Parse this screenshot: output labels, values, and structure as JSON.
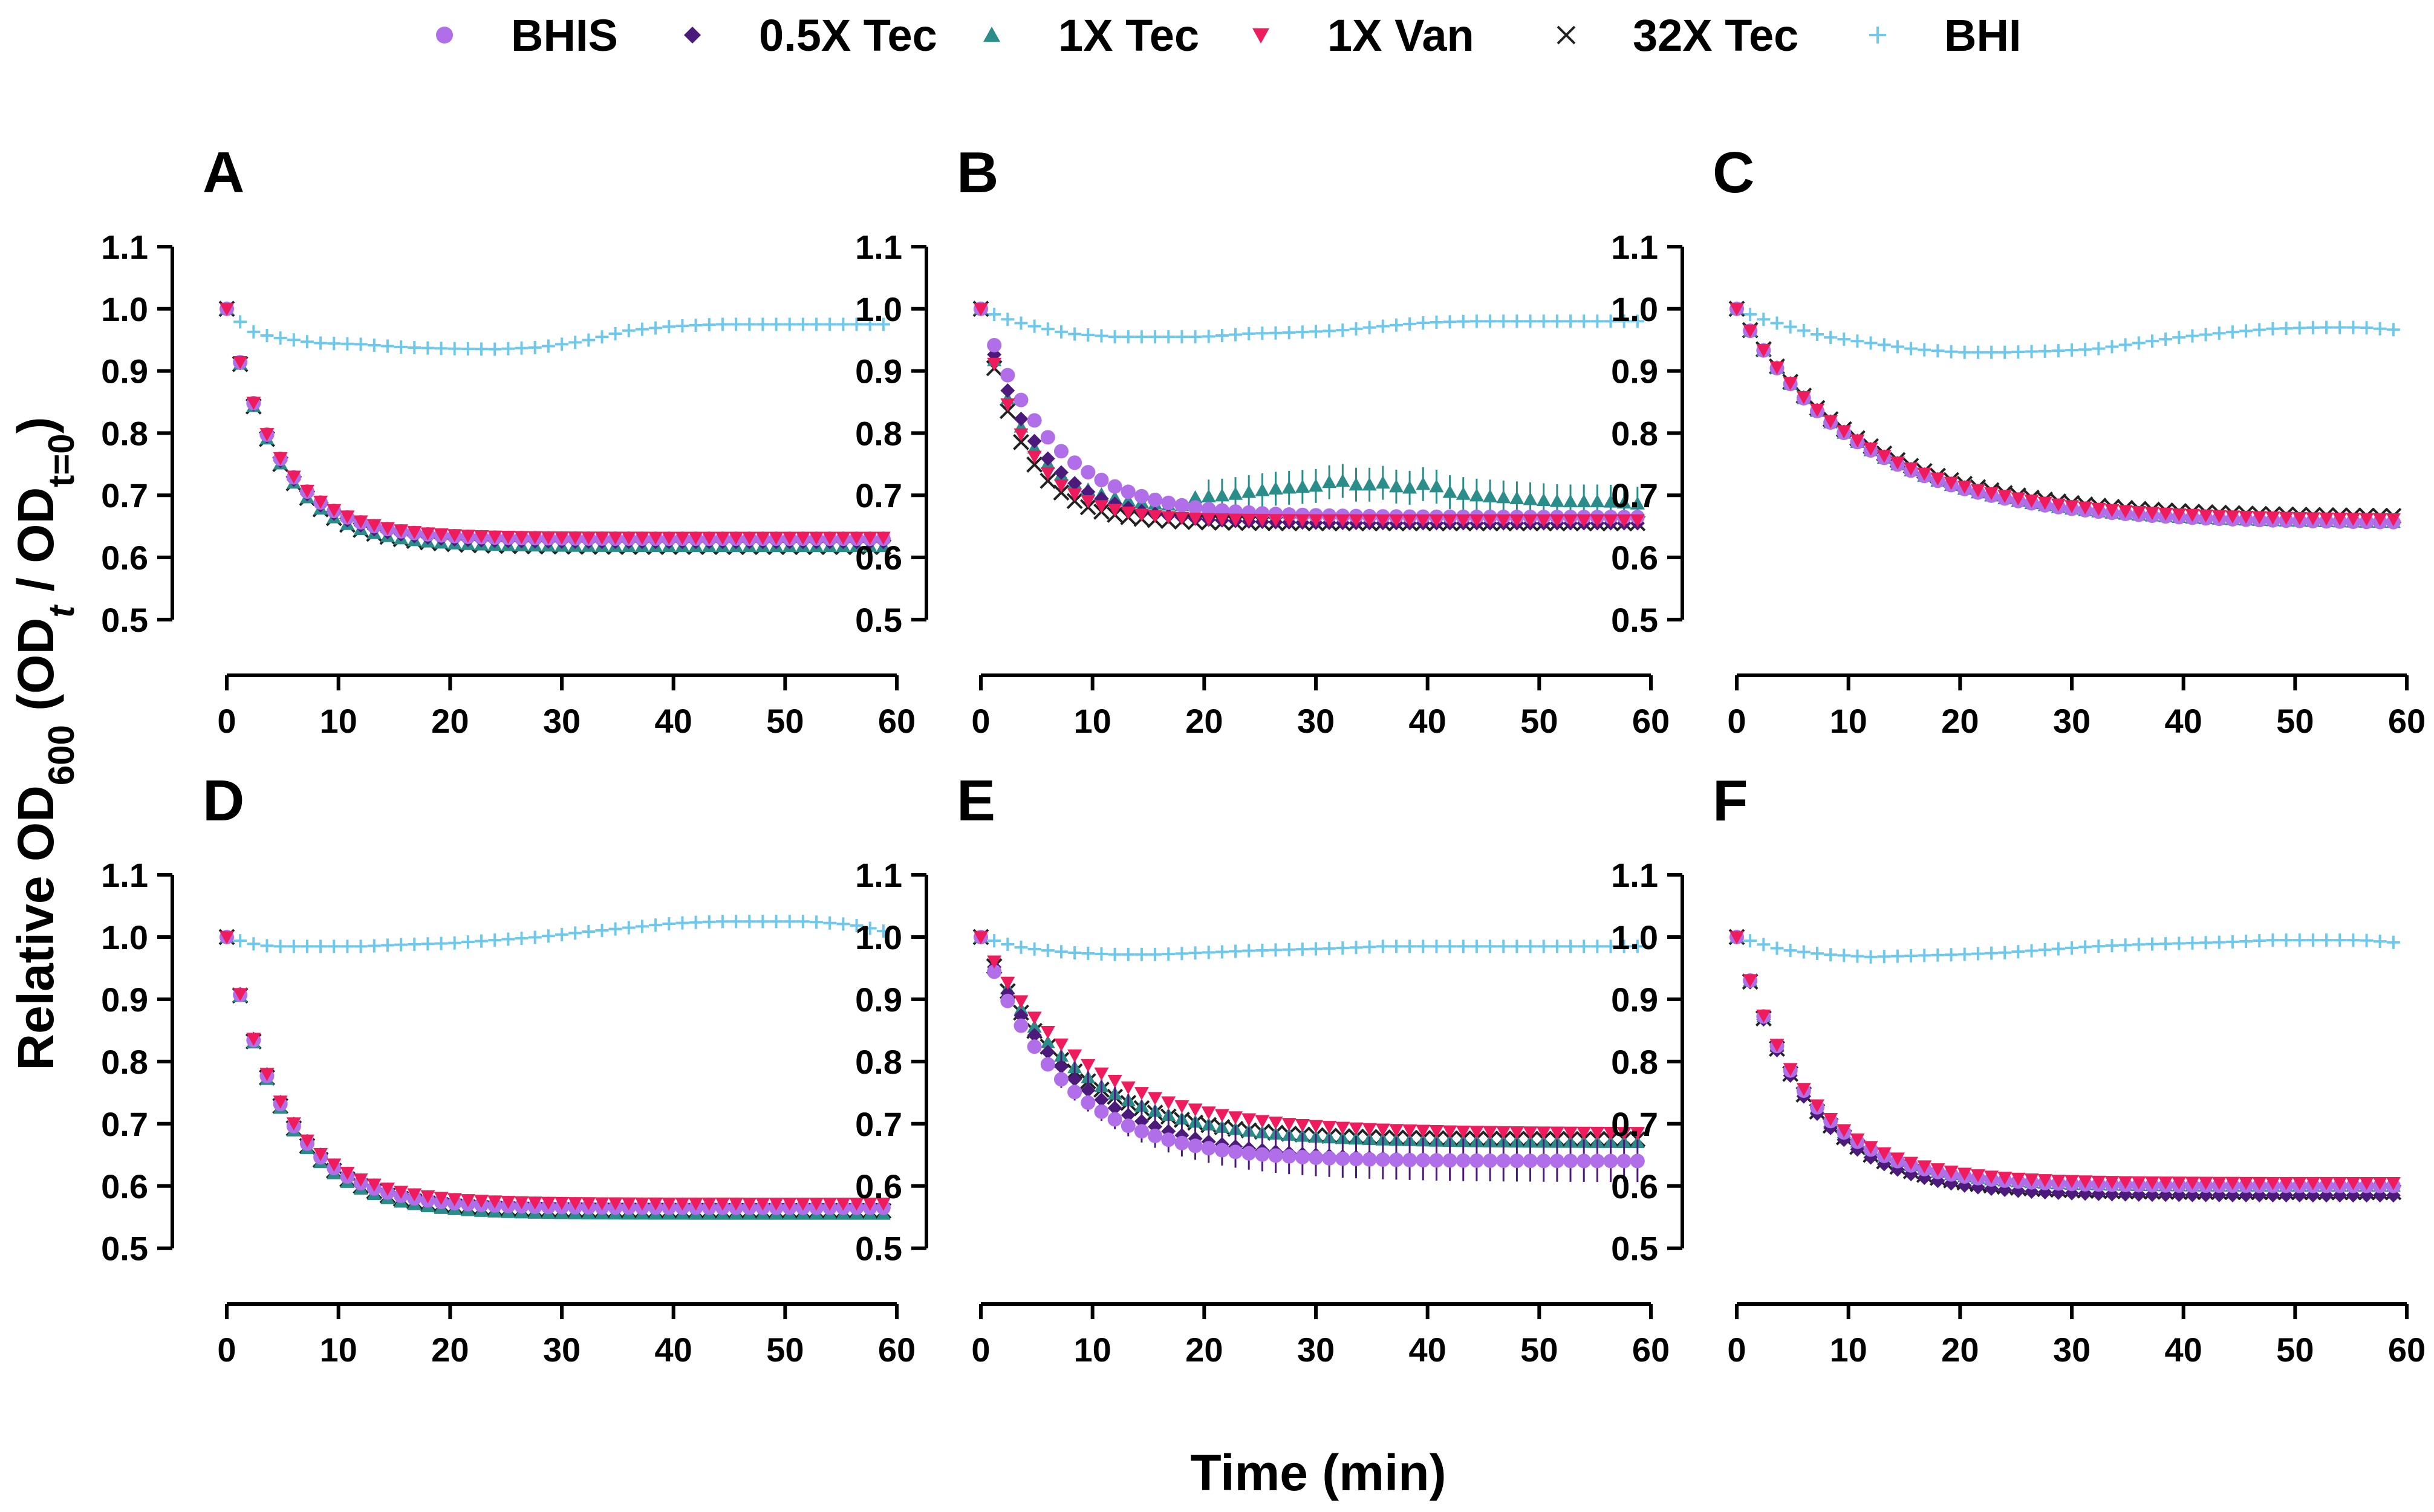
{
  "chart_data": {
    "type": "scatter",
    "x_axis_title": "Time (min)",
    "y_axis_title": {
      "prefix": "Relative OD",
      "sub600": "600",
      "open": " (OD",
      "sub_t": "t",
      "slash": " / OD",
      "sub_t0": "t=0",
      "close": ")"
    },
    "x_ticks": [
      "0",
      "10",
      "20",
      "30",
      "40",
      "50",
      "60"
    ],
    "y_ticks": [
      "0.5",
      "0.6",
      "0.7",
      "0.8",
      "0.9",
      "1.0",
      "1.1"
    ],
    "xlim": [
      0,
      60
    ],
    "ylim": [
      0.5,
      1.1
    ],
    "legend": [
      {
        "name": "BHIS",
        "color": "#b06ee8",
        "marker": "circle"
      },
      {
        "name": "0.5X Tec",
        "color": "#4b1a7a",
        "marker": "diamond"
      },
      {
        "name": "1X Tec",
        "color": "#2a8d8a",
        "marker": "triangle-up"
      },
      {
        "name": "1X Van",
        "color": "#ee1b5d",
        "marker": "triangle-down"
      },
      {
        "name": "32X Tec",
        "color": "#222222",
        "marker": "x"
      },
      {
        "name": "BHI",
        "color": "#6ec8ec",
        "marker": "plus"
      }
    ],
    "panels": [
      {
        "label": "A",
        "bhi": {
          "x": [
            0,
            2,
            4,
            8,
            12,
            16,
            20,
            24,
            28,
            32,
            36,
            40,
            44,
            48,
            52,
            56,
            60
          ],
          "y": [
            1.0,
            0.965,
            0.955,
            0.945,
            0.943,
            0.938,
            0.936,
            0.935,
            0.938,
            0.948,
            0.965,
            0.972,
            0.975,
            0.975,
            0.975,
            0.975,
            0.975
          ]
        },
        "series": {
          "BHIS": {
            "plateau": 0.63,
            "k": 0.22,
            "start_y": 1.0
          },
          "0.5X Tec": {
            "plateau": 0.625,
            "k": 0.22,
            "start_y": 1.0
          },
          "1X Tec": {
            "plateau": 0.618,
            "k": 0.22,
            "start_y": 1.0
          },
          "1X Van": {
            "plateau": 0.632,
            "k": 0.22,
            "start_y": 1.0
          },
          "32X Tec": {
            "plateau": 0.617,
            "k": 0.22,
            "start_y": 1.0
          }
        }
      },
      {
        "label": "B",
        "bhi": {
          "x": [
            0,
            2,
            4,
            8,
            12,
            16,
            20,
            24,
            28,
            32,
            36,
            40,
            44,
            48,
            52,
            56,
            60
          ],
          "y": [
            1.0,
            0.985,
            0.975,
            0.96,
            0.955,
            0.955,
            0.955,
            0.96,
            0.962,
            0.965,
            0.972,
            0.978,
            0.98,
            0.98,
            0.98,
            0.98,
            0.98
          ]
        },
        "series": {
          "BHIS": {
            "plateau": 0.665,
            "k": 0.16,
            "start_y": 1.0
          },
          "0.5X Tec": {
            "plateau": 0.655,
            "k": 0.2,
            "start_y": 1.0
          },
          "1X Tec": {
            "plateau": 0.68,
            "k": 0.25,
            "start_y": 1.0
          },
          "1X Van": {
            "plateau": 0.66,
            "k": 0.25,
            "start_y": 1.0
          },
          "32X Tec": {
            "plateau": 0.655,
            "k": 0.27,
            "start_y": 1.0
          }
        },
        "tec_bump": {
          "x": [
            18,
            22,
            26,
            30,
            32,
            34,
            36,
            38,
            40,
            42,
            44,
            48,
            52,
            56,
            60
          ],
          "y": [
            0.695,
            0.7,
            0.71,
            0.715,
            0.725,
            0.715,
            0.72,
            0.71,
            0.72,
            0.705,
            0.7,
            0.695,
            0.69,
            0.69,
            0.685
          ]
        }
      },
      {
        "label": "C",
        "bhi": {
          "x": [
            0,
            2,
            4,
            8,
            12,
            16,
            20,
            24,
            28,
            32,
            36,
            40,
            44,
            48,
            52,
            56,
            60
          ],
          "y": [
            1.0,
            0.985,
            0.975,
            0.955,
            0.945,
            0.935,
            0.93,
            0.93,
            0.932,
            0.935,
            0.945,
            0.955,
            0.962,
            0.968,
            0.97,
            0.97,
            0.965
          ]
        },
        "series": {
          "BHIS": {
            "plateau": 0.655,
            "k": 0.09,
            "start_y": 1.0
          },
          "0.5X Tec": {
            "plateau": 0.658,
            "k": 0.09,
            "start_y": 1.0
          },
          "1X Tec": {
            "plateau": 0.655,
            "k": 0.09,
            "start_y": 1.0
          },
          "1X Van": {
            "plateau": 0.66,
            "k": 0.09,
            "start_y": 1.0
          },
          "32X Tec": {
            "plateau": 0.665,
            "k": 0.09,
            "start_y": 1.0
          }
        }
      },
      {
        "label": "D",
        "bhi": {
          "x": [
            0,
            2,
            4,
            8,
            12,
            16,
            20,
            24,
            28,
            32,
            36,
            40,
            44,
            48,
            52,
            56,
            60
          ],
          "y": [
            1.0,
            0.99,
            0.985,
            0.985,
            0.985,
            0.988,
            0.99,
            0.995,
            1.0,
            1.008,
            1.015,
            1.022,
            1.025,
            1.025,
            1.025,
            1.02,
            1.005
          ]
        },
        "series": {
          "BHIS": {
            "plateau": 0.565,
            "k": 0.2,
            "start_y": 1.0
          },
          "0.5X Tec": {
            "plateau": 0.57,
            "k": 0.2,
            "start_y": 1.0
          },
          "1X Tec": {
            "plateau": 0.555,
            "k": 0.2,
            "start_y": 1.0
          },
          "1X Van": {
            "plateau": 0.572,
            "k": 0.2,
            "start_y": 1.0
          },
          "32X Tec": {
            "plateau": 0.56,
            "k": 0.2,
            "start_y": 1.0
          }
        }
      },
      {
        "label": "E",
        "bhi": {
          "x": [
            0,
            2,
            4,
            8,
            12,
            16,
            20,
            24,
            28,
            32,
            36,
            40,
            44,
            48,
            52,
            56,
            60
          ],
          "y": [
            1.0,
            0.99,
            0.982,
            0.975,
            0.972,
            0.972,
            0.975,
            0.978,
            0.98,
            0.982,
            0.985,
            0.985,
            0.985,
            0.985,
            0.985,
            0.985,
            0.985
          ]
        },
        "series": {
          "BHIS": {
            "plateau": 0.64,
            "k": 0.14,
            "start_y": 1.0
          },
          "0.5X Tec": {
            "plateau": 0.64,
            "k": 0.12,
            "start_y": 1.0
          },
          "1X Tec": {
            "plateau": 0.67,
            "k": 0.12,
            "start_y": 1.0
          },
          "1X Van": {
            "plateau": 0.685,
            "k": 0.11,
            "start_y": 1.0
          },
          "32X Tec": {
            "plateau": 0.675,
            "k": 0.13,
            "start_y": 1.0
          }
        }
      },
      {
        "label": "F",
        "bhi": {
          "x": [
            0,
            2,
            4,
            8,
            12,
            16,
            20,
            24,
            28,
            32,
            36,
            40,
            44,
            48,
            52,
            56,
            60
          ],
          "y": [
            1.0,
            0.99,
            0.98,
            0.972,
            0.968,
            0.97,
            0.972,
            0.975,
            0.98,
            0.985,
            0.988,
            0.99,
            0.992,
            0.995,
            0.995,
            0.995,
            0.99
          ]
        },
        "series": {
          "BHIS": {
            "plateau": 0.6,
            "k": 0.16,
            "start_y": 1.0
          },
          "0.5X Tec": {
            "plateau": 0.585,
            "k": 0.16,
            "start_y": 1.0
          },
          "1X Tec": {
            "plateau": 0.6,
            "k": 0.16,
            "start_y": 1.0
          },
          "1X Van": {
            "plateau": 0.605,
            "k": 0.16,
            "start_y": 1.0
          },
          "32X Tec": {
            "plateau": 0.59,
            "k": 0.16,
            "start_y": 1.0
          }
        }
      }
    ]
  }
}
